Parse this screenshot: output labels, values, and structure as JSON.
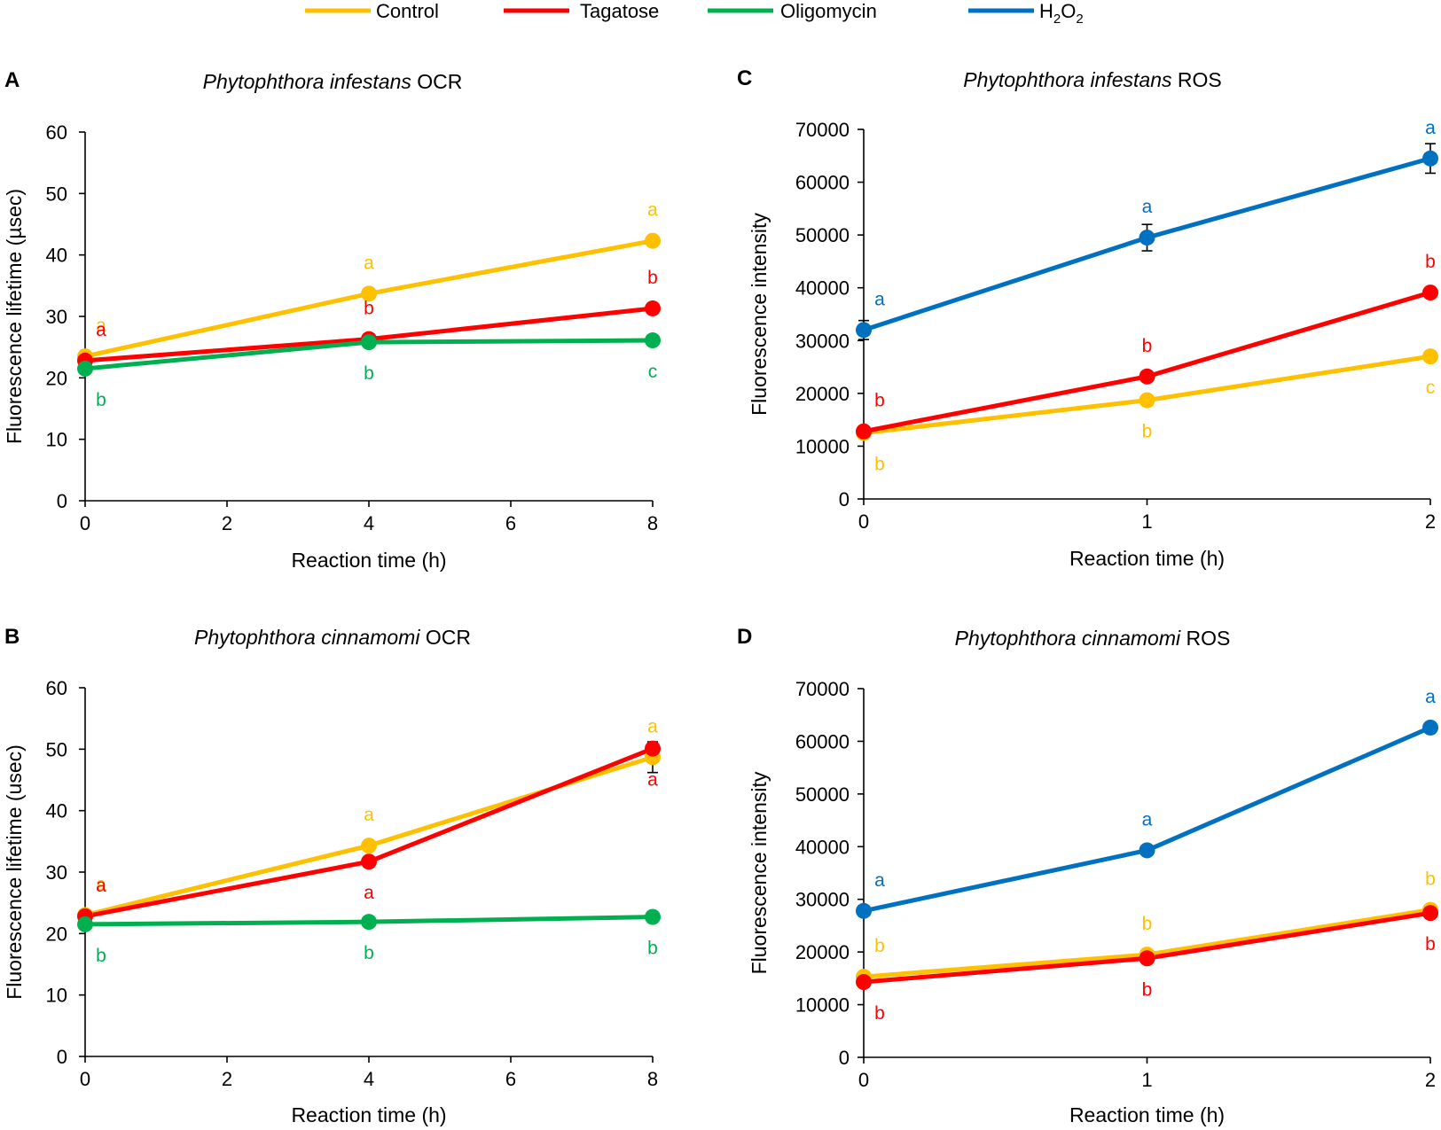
{
  "legend": [
    {
      "name": "Control",
      "color": "#FFC000"
    },
    {
      "name": "Tagatose",
      "color": "#FF0000"
    },
    {
      "name": "Oligomycin",
      "color": "#00B050"
    },
    {
      "name": "H2O2",
      "label_main": "H",
      "label_sub1": "2",
      "label_mid": "O",
      "label_sub2": "2",
      "color": "#0070C0"
    }
  ],
  "chart_data": [
    {
      "id": "A",
      "letter": "A",
      "type": "line",
      "title_italic": "Phytophthora infestans",
      "title_rest": " OCR",
      "xlabel": "Reaction time (h)",
      "ylabel": "Fluorescence lifetime (µsec)",
      "x_ticks": [
        0,
        2,
        4,
        6,
        8
      ],
      "xlim": [
        0,
        8
      ],
      "y_ticks": [
        0,
        10,
        20,
        30,
        40,
        50,
        60
      ],
      "ylim": [
        0,
        60
      ],
      "x": [
        0,
        4,
        8
      ],
      "series": [
        {
          "name": "Control",
          "color": "#FFC000",
          "values": [
            23.5,
            33.7,
            42.3
          ],
          "labels": [
            "a",
            "a",
            "a"
          ],
          "label_pos": [
            "above",
            "above",
            "above"
          ],
          "errors": [
            0,
            0,
            0
          ]
        },
        {
          "name": "Tagatose",
          "color": "#FF0000",
          "values": [
            22.8,
            26.3,
            31.3
          ],
          "labels": [
            "a",
            "b",
            "b"
          ],
          "label_pos": [
            "above",
            "above",
            "above"
          ],
          "errors": [
            0,
            0,
            0
          ]
        },
        {
          "name": "Oligomycin",
          "color": "#00B050",
          "values": [
            21.5,
            25.8,
            26.1
          ],
          "labels": [
            "b",
            "b",
            "c"
          ],
          "label_pos": [
            "below",
            "below",
            "below"
          ],
          "errors": [
            0,
            0,
            0
          ]
        }
      ]
    },
    {
      "id": "B",
      "letter": "B",
      "type": "line",
      "title_italic": "Phytophthora cinnamomi",
      "title_rest": " OCR",
      "xlabel": "Reaction time (h)",
      "ylabel": "Fluorescence lifetime (usec)",
      "x_ticks": [
        0,
        2,
        4,
        6,
        8
      ],
      "xlim": [
        0,
        8
      ],
      "y_ticks": [
        0,
        10,
        20,
        30,
        40,
        50,
        60
      ],
      "ylim": [
        0,
        60
      ],
      "x": [
        0,
        4,
        8
      ],
      "series": [
        {
          "name": "Control",
          "color": "#FFC000",
          "values": [
            23.0,
            34.3,
            48.7
          ],
          "labels": [
            "a",
            "a",
            "a"
          ],
          "label_pos": [
            "above",
            "above",
            "above"
          ],
          "errors": [
            0,
            0,
            2.5
          ]
        },
        {
          "name": "Tagatose",
          "color": "#FF0000",
          "values": [
            22.8,
            31.7,
            50.1
          ],
          "labels": [
            "a",
            "a",
            "a"
          ],
          "label_pos": [
            "above",
            "below",
            "below"
          ],
          "errors": [
            0,
            0.8,
            0
          ]
        },
        {
          "name": "Oligomycin",
          "color": "#00B050",
          "values": [
            21.5,
            21.9,
            22.7
          ],
          "labels": [
            "b",
            "b",
            "b"
          ],
          "label_pos": [
            "below",
            "below",
            "below"
          ],
          "errors": [
            0,
            0,
            0
          ]
        }
      ]
    },
    {
      "id": "C",
      "letter": "C",
      "type": "line",
      "title_italic": "Phytophthora infestans",
      "title_rest": " ROS",
      "xlabel": "Reaction time (h)",
      "ylabel": "Fluorescence intensity",
      "x_ticks": [
        0,
        1,
        2
      ],
      "xlim": [
        0,
        2
      ],
      "y_ticks": [
        0,
        10000,
        20000,
        30000,
        40000,
        50000,
        60000,
        70000
      ],
      "ylim": [
        0,
        70000
      ],
      "x": [
        0,
        1,
        2
      ],
      "series": [
        {
          "name": "Control",
          "color": "#FFC000",
          "values": [
            12500,
            18700,
            27000
          ],
          "labels": [
            "b",
            "b",
            "c"
          ],
          "label_pos": [
            "below",
            "below",
            "below"
          ],
          "errors": [
            0,
            0,
            0
          ]
        },
        {
          "name": "Tagatose",
          "color": "#FF0000",
          "values": [
            12800,
            23200,
            39100
          ],
          "labels": [
            "b",
            "b",
            "b"
          ],
          "label_pos": [
            "above",
            "above",
            "above"
          ],
          "errors": [
            0,
            1000,
            0
          ]
        },
        {
          "name": "H2O2",
          "color": "#0070C0",
          "values": [
            32000,
            49500,
            64500
          ],
          "labels": [
            "a",
            "a",
            "a"
          ],
          "label_pos": [
            "above",
            "above",
            "above"
          ],
          "errors": [
            1800,
            2500,
            2800
          ]
        }
      ]
    },
    {
      "id": "D",
      "letter": "D",
      "type": "line",
      "title_italic": "Phytophthora cinnamomi",
      "title_rest": " ROS",
      "xlabel": "Reaction time (h)",
      "ylabel": "Fluorescence intensity",
      "x_ticks": [
        0,
        1,
        2
      ],
      "xlim": [
        0,
        2
      ],
      "y_ticks": [
        0,
        10000,
        20000,
        30000,
        40000,
        50000,
        60000,
        70000
      ],
      "ylim": [
        0,
        70000
      ],
      "x": [
        0,
        1,
        2
      ],
      "series": [
        {
          "name": "Control",
          "color": "#FFC000",
          "values": [
            15300,
            19500,
            28000
          ],
          "labels": [
            "b",
            "b",
            "b"
          ],
          "label_pos": [
            "above",
            "above",
            "above"
          ],
          "errors": [
            0,
            0,
            0
          ]
        },
        {
          "name": "Tagatose",
          "color": "#FF0000",
          "values": [
            14300,
            18800,
            27400
          ],
          "labels": [
            "b",
            "b",
            "b"
          ],
          "label_pos": [
            "below",
            "below",
            "below"
          ],
          "errors": [
            0,
            0,
            0
          ]
        },
        {
          "name": "H2O2",
          "color": "#0070C0",
          "values": [
            27800,
            39300,
            62600
          ],
          "labels": [
            "a",
            "a",
            "a"
          ],
          "label_pos": [
            "above",
            "above",
            "above"
          ],
          "errors": [
            0,
            0,
            0
          ]
        }
      ]
    }
  ]
}
